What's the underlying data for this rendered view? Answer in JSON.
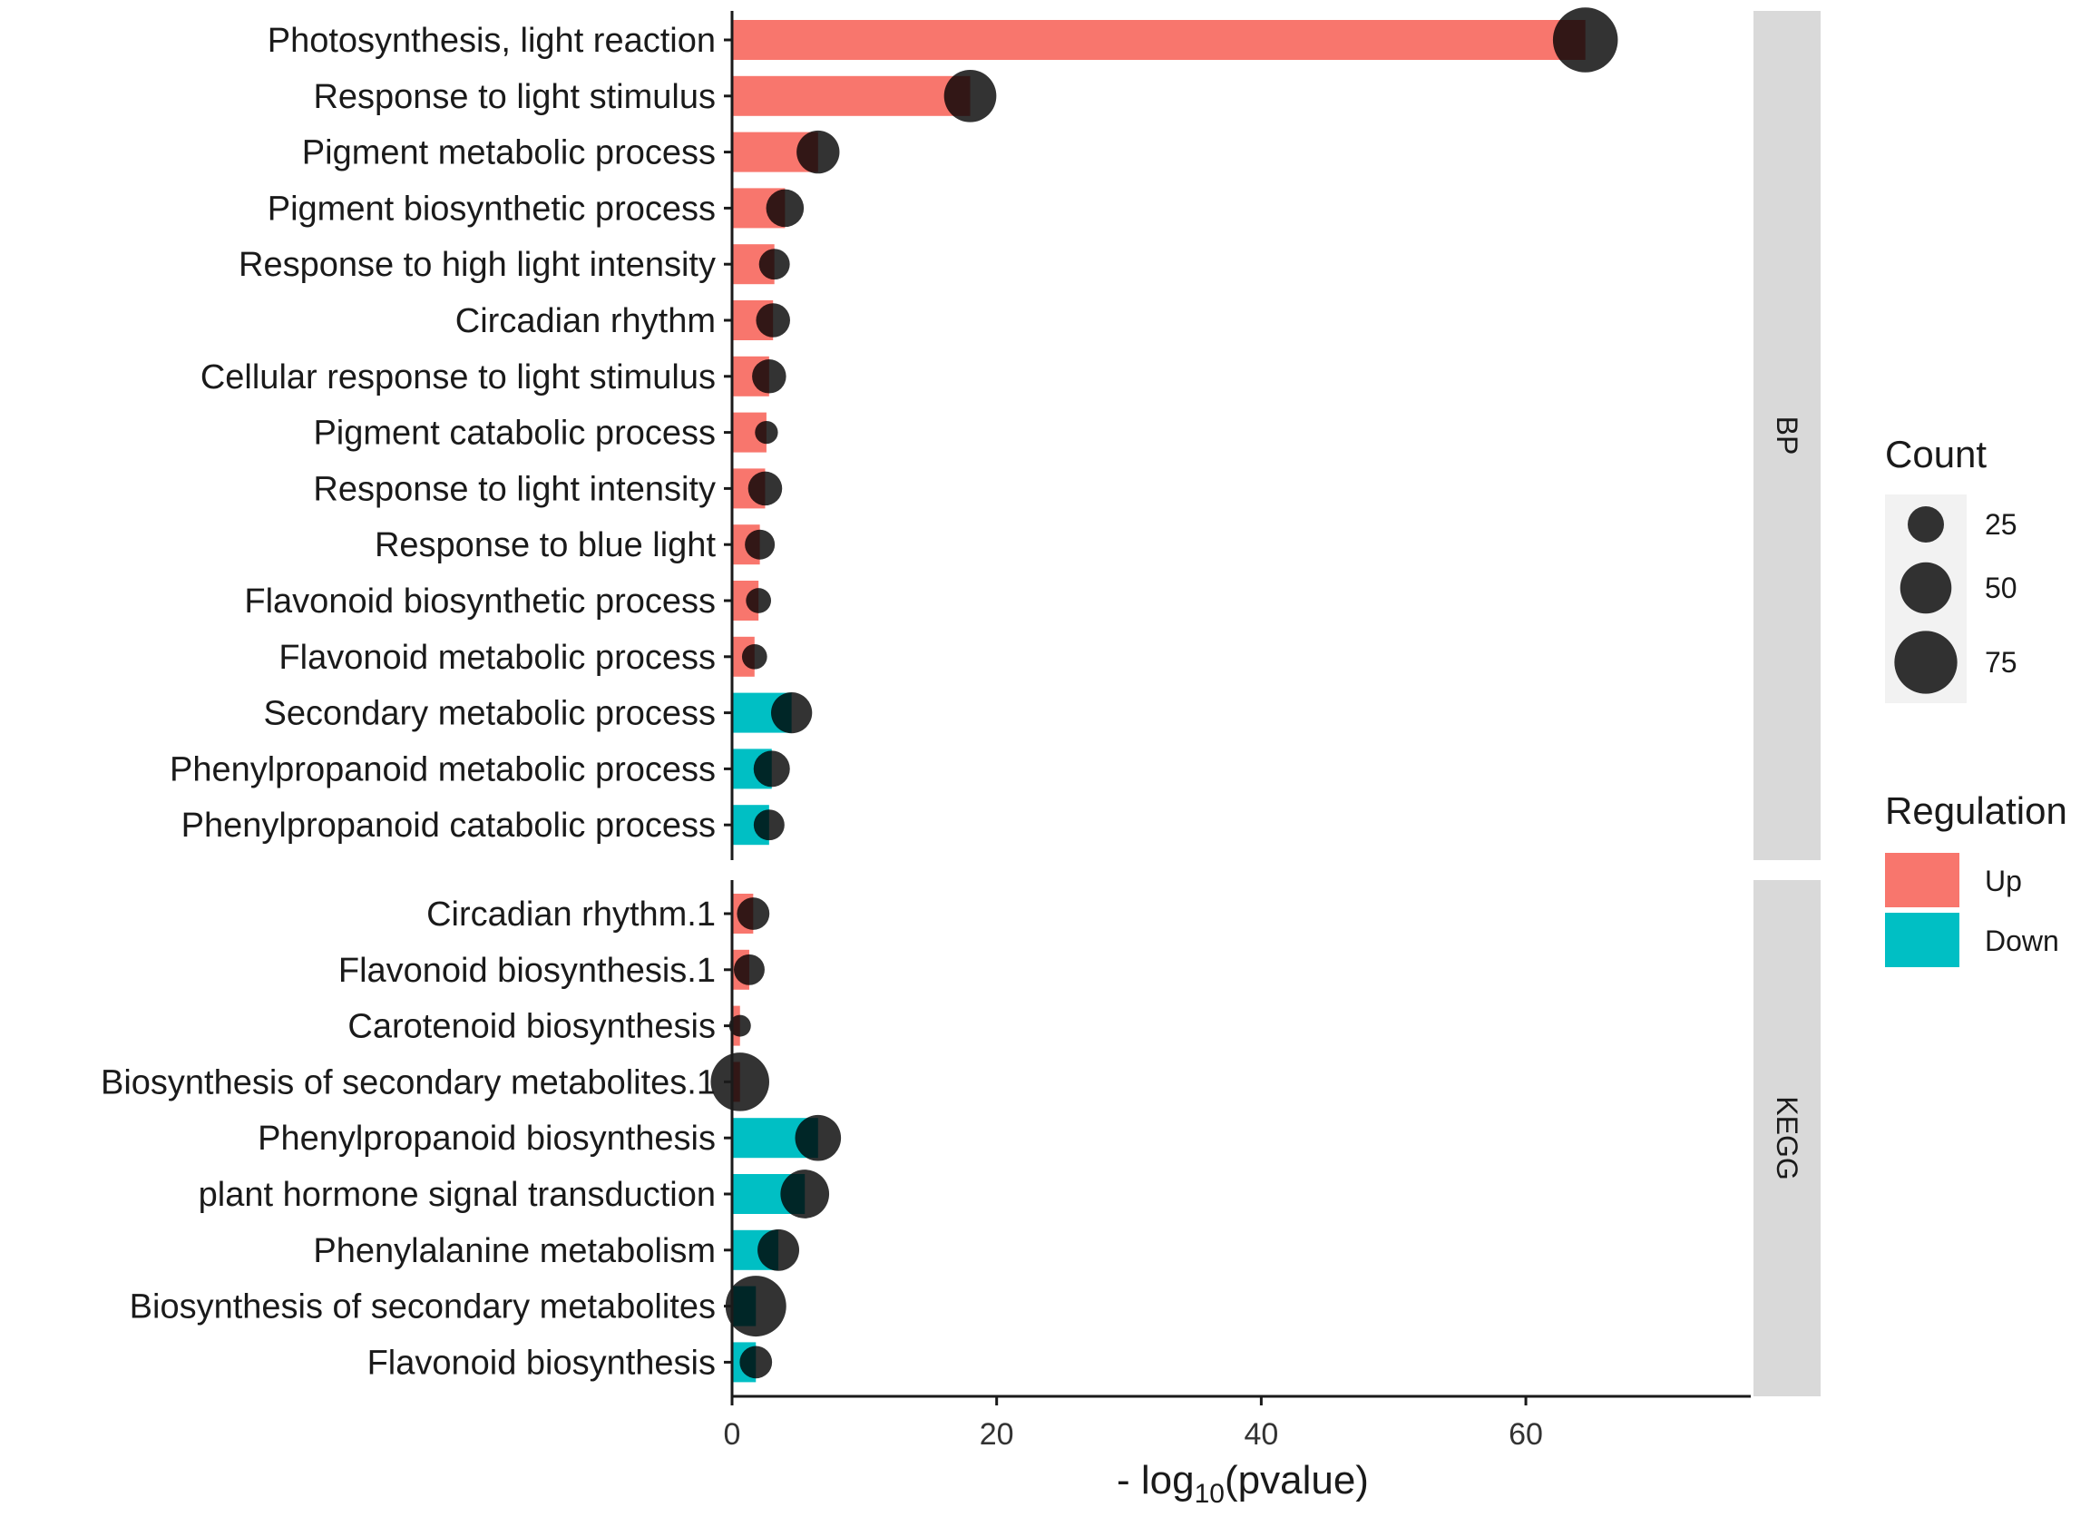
{
  "chart_data": {
    "type": "bar",
    "xlabel": {
      "prefix": "- log",
      "sub": "10",
      "suffix": "(pvalue)"
    },
    "xlim": [
      0,
      77
    ],
    "xticks": [
      0,
      20,
      40,
      60
    ],
    "colors": {
      "Up": "#F8766D",
      "Down": "#00BFC4",
      "point": "#000000",
      "strip": "#d9d9d9"
    },
    "panels": [
      {
        "name": "BP",
        "rows": [
          {
            "label": "Photosynthesis, light reaction",
            "value": 64.5,
            "count": 80,
            "regulation": "Up"
          },
          {
            "label": "Response to light stimulus",
            "value": 18,
            "count": 52,
            "regulation": "Up"
          },
          {
            "label": "Pigment metabolic process",
            "value": 6.5,
            "count": 35,
            "regulation": "Up"
          },
          {
            "label": "Pigment biosynthetic process",
            "value": 4,
            "count": 27,
            "regulation": "Up"
          },
          {
            "label": "Response to high light intensity",
            "value": 3.2,
            "count": 18,
            "regulation": "Up"
          },
          {
            "label": "Circadian rhythm",
            "value": 3.1,
            "count": 22,
            "regulation": "Up"
          },
          {
            "label": "Cellular response to light stimulus",
            "value": 2.8,
            "count": 22,
            "regulation": "Up"
          },
          {
            "label": "Pigment catabolic process",
            "value": 2.6,
            "count": 10,
            "regulation": "Up"
          },
          {
            "label": "Response to light intensity",
            "value": 2.5,
            "count": 22,
            "regulation": "Up"
          },
          {
            "label": "Response to blue light",
            "value": 2.1,
            "count": 17,
            "regulation": "Up"
          },
          {
            "label": "Flavonoid biosynthetic process",
            "value": 2,
            "count": 12,
            "regulation": "Up"
          },
          {
            "label": "Flavonoid metabolic process",
            "value": 1.7,
            "count": 12,
            "regulation": "Up"
          },
          {
            "label": "Secondary metabolic process",
            "value": 4.5,
            "count": 32,
            "regulation": "Down"
          },
          {
            "label": "Phenylpropanoid metabolic process",
            "value": 3,
            "count": 25,
            "regulation": "Down"
          },
          {
            "label": "Phenylpropanoid catabolic process",
            "value": 2.8,
            "count": 18,
            "regulation": "Down"
          }
        ]
      },
      {
        "name": "KEGG",
        "rows": [
          {
            "label": "Circadian rhythm.1",
            "value": 1.6,
            "count": 20,
            "regulation": "Up"
          },
          {
            "label": "Flavonoid biosynthesis.1",
            "value": 1.3,
            "count": 18,
            "regulation": "Up"
          },
          {
            "label": "Carotenoid biosynthesis",
            "value": 0.6,
            "count": 9,
            "regulation": "Up"
          },
          {
            "label": "Biosynthesis of secondary metabolites.1",
            "value": 0.6,
            "count": 65,
            "regulation": "Up"
          },
          {
            "label": "Phenylpropanoid biosynthesis",
            "value": 6.5,
            "count": 40,
            "regulation": "Down"
          },
          {
            "label": "plant hormone signal transduction",
            "value": 5.5,
            "count": 45,
            "regulation": "Down"
          },
          {
            "label": "Phenylalanine metabolism",
            "value": 3.5,
            "count": 33,
            "regulation": "Down"
          },
          {
            "label": "Biosynthesis of secondary metabolites",
            "value": 1.8,
            "count": 70,
            "regulation": "Down"
          },
          {
            "label": "Flavonoid biosynthesis",
            "value": 1.8,
            "count": 20,
            "regulation": "Down"
          }
        ]
      }
    ],
    "legend": {
      "count": {
        "title": "Count",
        "breaks": [
          25,
          50,
          75
        ]
      },
      "regulation": {
        "title": "Regulation",
        "items": [
          "Up",
          "Down"
        ]
      }
    }
  }
}
